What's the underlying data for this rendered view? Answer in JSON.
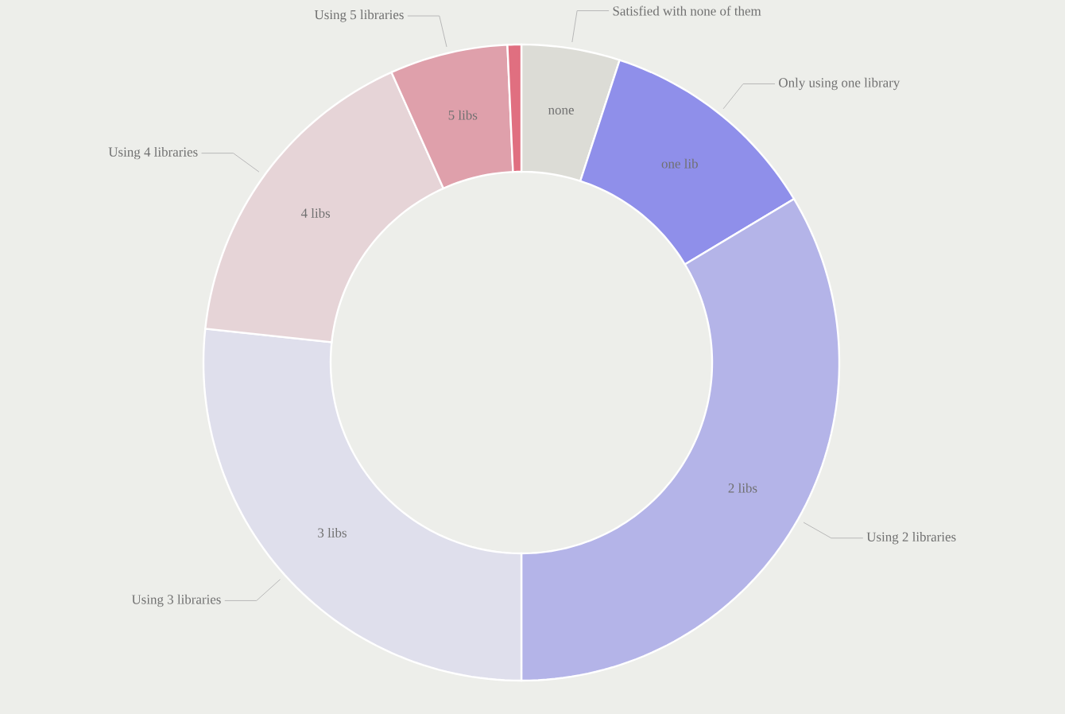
{
  "chart_data": {
    "type": "donut",
    "categories": [
      "Satisfied with none of them",
      "Only using one library",
      "Using 2 libraries",
      "Using 3 libraries",
      "Using 4 libraries",
      "Using 5 libraries",
      null
    ],
    "values": [
      5,
      11.4,
      33.6,
      26.7,
      16.6,
      6,
      0.7
    ],
    "annotations": [
      "none",
      "one lib",
      "2 libs",
      "3 libs",
      "4 libs",
      "5 libs"
    ],
    "colors": [
      "#dcdcd6",
      "#8f8fea",
      "#b4b4e8",
      "#dfdfec",
      "#e6d4d7",
      "#dfa0ab",
      "#e06f80"
    ]
  }
}
